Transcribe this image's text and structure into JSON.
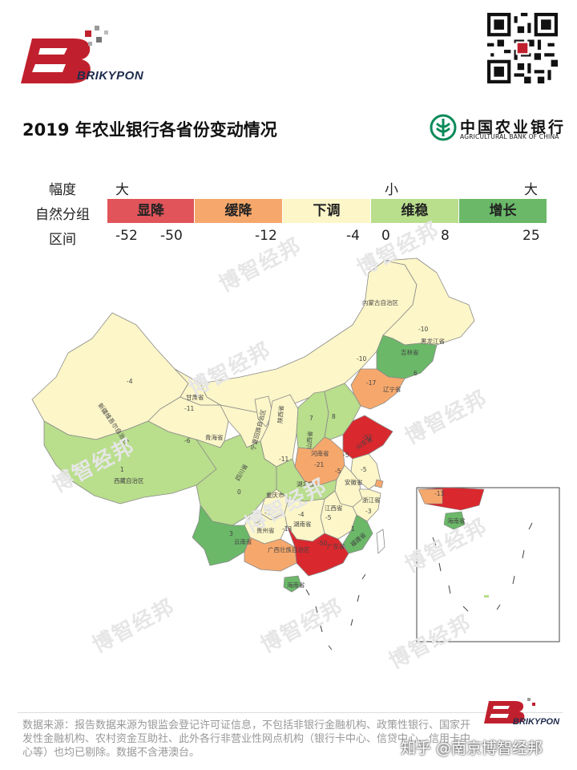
{
  "brand": {
    "name": "BRIKYPON",
    "color": "#c0202d"
  },
  "title": "2019 年农业银行各省份变动情况",
  "bank": {
    "name_cn": "中国农业银行",
    "name_en": "AGRICULTURAL BANK OF CHINA",
    "color": "#0b8a5a"
  },
  "legend": {
    "row_labels": [
      "幅度",
      "自然分组",
      "区间"
    ],
    "magnitude_words": [
      "大",
      "小",
      "大"
    ],
    "groups": [
      {
        "label": "显降",
        "color": "#e0545a"
      },
      {
        "label": "缓降",
        "color": "#f6a86c"
      },
      {
        "label": "下调",
        "color": "#fcf6c8"
      },
      {
        "label": "维稳",
        "color": "#b9de8c"
      },
      {
        "label": "增长",
        "color": "#6ab868"
      }
    ],
    "breaks": [
      "-52",
      "-50",
      "-12",
      "-4",
      "0",
      "8",
      "25"
    ]
  },
  "chart_data": {
    "type": "choropleth-map",
    "title": "2019 年农业银行各省份变动情况",
    "provinces": [
      {
        "name": "内蒙古自治区",
        "value": null,
        "group": "下调"
      },
      {
        "name": "黑龙江省",
        "value": -10,
        "group": "下调"
      },
      {
        "name": "吉林省",
        "value": 6,
        "group": "维稳"
      },
      {
        "name": "辽宁省",
        "value": -17,
        "group": "缓降"
      },
      {
        "name": "新疆维吾尔自治区",
        "value": -4,
        "group": "下调"
      },
      {
        "name": "甘肃省",
        "value": -11,
        "group": "下调"
      },
      {
        "name": "青海省",
        "value": -6,
        "group": "下调"
      },
      {
        "name": "西藏自治区",
        "value": 1,
        "group": "维稳"
      },
      {
        "name": "宁夏回族自治区",
        "value": null,
        "group": "下调"
      },
      {
        "name": "陕西省",
        "value": -11,
        "group": "下调"
      },
      {
        "name": "山西省",
        "value": 7,
        "group": "维稳"
      },
      {
        "name": "河北省",
        "value": 8,
        "group": "维稳"
      },
      {
        "name": "山东省",
        "value": -52,
        "group": "显降"
      },
      {
        "name": "河南省",
        "value": -21,
        "group": "缓降"
      },
      {
        "name": "四川省",
        "value": 0,
        "group": "维稳"
      },
      {
        "name": "湖北省",
        "value": 1,
        "group": "维稳"
      },
      {
        "name": "安徽省",
        "value": -5,
        "group": "下调"
      },
      {
        "name": "重庆市",
        "value": -1,
        "group": "下调"
      },
      {
        "name": "贵州省",
        "value": -6,
        "group": "下调"
      },
      {
        "name": "湖南省",
        "value": -4,
        "group": "下调"
      },
      {
        "name": "江西省",
        "value": -5,
        "group": "下调"
      },
      {
        "name": "浙江省",
        "value": -3,
        "group": "下调"
      },
      {
        "name": "福建省",
        "value": 1,
        "group": "维稳"
      },
      {
        "name": "云南省",
        "value": 3,
        "group": "维稳"
      },
      {
        "name": "广西壮族自治区",
        "value": -13,
        "group": "缓降"
      },
      {
        "name": "广东省",
        "value": -50,
        "group": "显降"
      },
      {
        "name": "海南省",
        "value": null,
        "group": "维稳"
      }
    ],
    "inset_values": [
      "-13"
    ]
  },
  "map_labels": {
    "neimenggu": "内蒙古自治区",
    "heilongjiang": "黑龙江省",
    "heilongjiang_v": "-10",
    "jilin": "吉林省",
    "jilin_v": "6",
    "liaoning": "辽宁省",
    "liaoning_v": "-17",
    "xinjiang": "新疆维吾尔自治区",
    "xinjiang_v": "-4",
    "gansu": "甘肃省",
    "gansu_v": "-11",
    "qinghai": "青海省",
    "qinghai_v": "-6",
    "xizang": "西藏自治区",
    "xizang_v": "1",
    "ningxia": "宁夏回族自治区",
    "shaanxi": "陕西省",
    "shaanxi_v": "-11",
    "shanxi": "山西省",
    "shanxi_v": "7",
    "hebei_v": "8",
    "shandong": "山东省",
    "shandong_v": "-52",
    "henan": "河南省",
    "henan_v": "-21",
    "sichuan": "四川省",
    "sichuan_v": "0",
    "hubei": "湖北省",
    "hubei_v": "1",
    "anhui": "安徽省",
    "anhui_v": "-5",
    "chongqing": "重庆市",
    "chongqing_v": "-1",
    "guizhou": "贵州省",
    "guizhou_v": "-6",
    "hunan": "湖南省",
    "hunan_v": "-4",
    "jiangxi": "江西省",
    "jiangxi_v": "-5",
    "zhejiang": "浙江省",
    "zhejiang_v": "-3",
    "fujian": "福建省",
    "fujian_v": "1",
    "yunnan": "云南省",
    "yunnan_v": "3",
    "guangxi": "广西壮族自治区",
    "guangxi_v": "-13",
    "guangdong": "广东省",
    "guangdong_v": "-50",
    "hainan": "海南省",
    "inset_hainan": "海南省",
    "neimenggu_v": "-10",
    "hebei2_v": "-5",
    "jiangsu_v": "-5"
  },
  "watermark": "博智经邦",
  "source_note": "数据来源：报告数据来源为银监会登记许可证信息，不包括非银行金融机构、政策性银行、国家开发性金融机构、农村资金互助社、此外各行非营业性网点机构（银行卡中心、信贷中心、信用卡中心等）也均已剔除。数据不含港澳台。",
  "zhihu_credit": "知乎 @南京博智经邦"
}
